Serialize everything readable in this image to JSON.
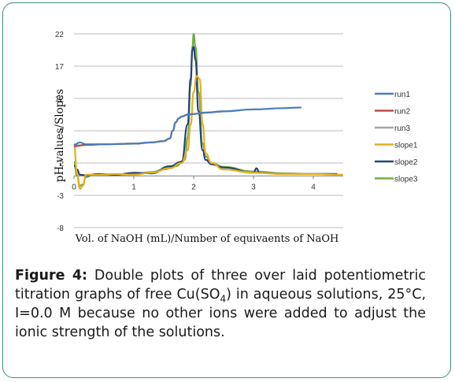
{
  "chart_data": {
    "type": "line",
    "xlabel": "Vol. of NaOH (mL)/Number of equivaents of NaOH",
    "ylabel": "pH-values/Slopes",
    "xlim": [
      0,
      4.5
    ],
    "ylim": [
      -8,
      22
    ],
    "xticks": [
      "0",
      "1",
      "2",
      "3",
      "4"
    ],
    "yticks": [
      "22",
      "17",
      "12",
      "7",
      "2",
      "-3",
      "-8"
    ],
    "grid": "horizontal",
    "legend_position": "right",
    "series": [
      {
        "name": "run1",
        "color": "#4a7ebb",
        "x": [
          0,
          0.1,
          0.2,
          0.5,
          1.0,
          1.3,
          1.5,
          1.6,
          1.65,
          1.7,
          1.75,
          1.8,
          1.9,
          2.0,
          2.2,
          2.5,
          3.0,
          3.5,
          3.8
        ],
        "y": [
          4.8,
          5.2,
          4.9,
          4.9,
          5.0,
          5.2,
          5.4,
          5.8,
          7.0,
          8.3,
          8.9,
          9.2,
          9.5,
          9.6,
          9.8,
          10.0,
          10.3,
          10.5,
          10.6
        ]
      },
      {
        "name": "run2",
        "color": "#be4b48",
        "x": [
          0,
          0.2,
          0.5,
          1.0,
          1.3,
          1.5,
          1.6,
          1.65,
          1.7,
          1.75,
          1.8,
          1.9,
          2.0,
          2.2,
          2.5
        ],
        "y": [
          4.6,
          4.8,
          4.9,
          5.0,
          5.2,
          5.4,
          5.8,
          7.0,
          8.3,
          8.9,
          9.2,
          9.5,
          9.6,
          9.8,
          10.0
        ]
      },
      {
        "name": "run3",
        "color": "#a5a5a5",
        "x": [
          0,
          0.2,
          0.5,
          1.0,
          1.3,
          1.5,
          1.6,
          1.65,
          1.7,
          1.75,
          1.8,
          1.9,
          2.0,
          2.2,
          2.5
        ],
        "y": [
          4.7,
          4.8,
          4.9,
          5.0,
          5.2,
          5.4,
          5.8,
          7.0,
          8.3,
          8.9,
          9.2,
          9.5,
          9.6,
          9.8,
          10.0
        ]
      },
      {
        "name": "slope1",
        "color": "#e4ae1f",
        "x": [
          0,
          0.05,
          0.1,
          0.15,
          0.2,
          0.4,
          0.7,
          1.0,
          1.3,
          1.6,
          1.8,
          1.9,
          1.95,
          2.0,
          2.05,
          2.1,
          2.15,
          2.2,
          2.3,
          2.5,
          3.0,
          3.5,
          4.0,
          4.5
        ],
        "y": [
          5.0,
          0.5,
          -2.0,
          -1.5,
          0.2,
          0.2,
          0.3,
          0.2,
          0.5,
          1.2,
          2.0,
          4.0,
          8.0,
          13.0,
          15.5,
          15.0,
          8.0,
          3.5,
          2.0,
          1.0,
          0.5,
          0.3,
          0.3,
          0.2
        ]
      },
      {
        "name": "slope2",
        "color": "#264478",
        "x": [
          0,
          0.05,
          0.1,
          0.2,
          0.4,
          0.7,
          1.0,
          1.3,
          1.6,
          1.8,
          1.9,
          1.95,
          1.98,
          2.0,
          2.03,
          2.08,
          2.15,
          2.2,
          2.3,
          2.5,
          3.0,
          3.05,
          3.1,
          3.5,
          4.0,
          4.4
        ],
        "y": [
          1.6,
          1.0,
          0.2,
          0.1,
          0.3,
          0.2,
          0.5,
          0.4,
          1.5,
          2.2,
          8.0,
          15.0,
          19.5,
          20.0,
          18.0,
          10.0,
          4.0,
          2.5,
          1.8,
          1.3,
          0.5,
          1.2,
          0.5,
          0.3,
          0.3,
          0.3
        ]
      },
      {
        "name": "slope3",
        "color": "#70ad47",
        "x": [
          0,
          0.05,
          0.1,
          0.15,
          0.2,
          0.3,
          0.5,
          0.8,
          1.0,
          1.3,
          1.5,
          1.7,
          1.85,
          1.9,
          1.95,
          1.98,
          2.0,
          2.03,
          2.08,
          2.15,
          2.2,
          2.3,
          2.5,
          3.0,
          3.5,
          4.0,
          4.3
        ],
        "y": [
          2.2,
          0.0,
          -1.5,
          -1.3,
          -0.2,
          0.1,
          0.2,
          0.2,
          0.3,
          0.6,
          1.0,
          1.5,
          2.5,
          6.0,
          14.0,
          20.0,
          22.0,
          20.0,
          13.0,
          5.0,
          3.0,
          2.0,
          1.4,
          0.7,
          0.4,
          0.3,
          0.3
        ]
      }
    ]
  },
  "caption": {
    "label": "Figure 4:",
    "part1": " Double plots of three over laid potentiometric titration graphs of free Cu(SO",
    "subscript": "4",
    "part2": ") in aqueous solutions, 25°C, I=0.0 M because no other ions were added to adjust the ionic strength of the solutions."
  }
}
